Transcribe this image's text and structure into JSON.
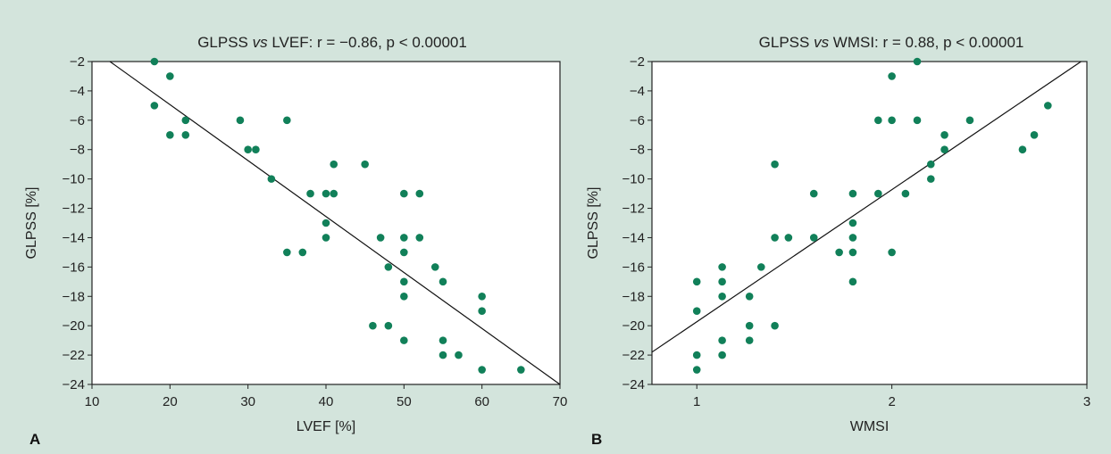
{
  "figure": {
    "background_color": "#d3e4dc",
    "point_color": "#118059"
  },
  "chart_data": [
    {
      "type": "scatter",
      "panel_letter": "A",
      "title_parts": [
        "GLPSS ",
        "vs",
        " LVEF: r = −0.86, p < 0.00001"
      ],
      "xlabel": "LVEF [%]",
      "ylabel": "GLPSS [%]",
      "xlim": [
        10,
        70
      ],
      "ylim": [
        -24,
        -2
      ],
      "xticks": [
        10,
        20,
        30,
        40,
        50,
        60,
        70
      ],
      "xtick_labels": [
        "10",
        "20",
        "30",
        "40",
        "50",
        "60",
        "70"
      ],
      "yticks": [
        -2,
        -4,
        -6,
        -8,
        -10,
        -12,
        -14,
        -16,
        -18,
        -20,
        -22,
        -24
      ],
      "ytick_labels": [
        "−2",
        "−4",
        "−6",
        "−8",
        "−10",
        "−12",
        "−14",
        "−16",
        "−18",
        "−20",
        "−22",
        "−24"
      ],
      "grid": false,
      "regression_line": [
        [
          12.3,
          -2
        ],
        [
          70,
          -24
        ]
      ],
      "points": [
        [
          18,
          -2
        ],
        [
          20,
          -3
        ],
        [
          18,
          -5
        ],
        [
          20,
          -7
        ],
        [
          22,
          -6
        ],
        [
          22,
          -7
        ],
        [
          29,
          -6
        ],
        [
          30,
          -8
        ],
        [
          31,
          -8
        ],
        [
          33,
          -10
        ],
        [
          35,
          -6
        ],
        [
          35,
          -15
        ],
        [
          37,
          -15
        ],
        [
          38,
          -11
        ],
        [
          40,
          -11
        ],
        [
          40,
          -13
        ],
        [
          40,
          -14
        ],
        [
          41,
          -9
        ],
        [
          41,
          -11
        ],
        [
          45,
          -9
        ],
        [
          46,
          -20
        ],
        [
          47,
          -14
        ],
        [
          48,
          -16
        ],
        [
          48,
          -20
        ],
        [
          50,
          -11
        ],
        [
          50,
          -14
        ],
        [
          50,
          -15
        ],
        [
          50,
          -17
        ],
        [
          50,
          -18
        ],
        [
          50,
          -21
        ],
        [
          52,
          -11
        ],
        [
          52,
          -14
        ],
        [
          54,
          -16
        ],
        [
          55,
          -17
        ],
        [
          55,
          -21
        ],
        [
          55,
          -22
        ],
        [
          57,
          -22
        ],
        [
          60,
          -18
        ],
        [
          60,
          -19
        ],
        [
          60,
          -23
        ],
        [
          65,
          -23
        ]
      ]
    },
    {
      "type": "scatter",
      "panel_letter": "B",
      "title_parts": [
        "GLPSS ",
        "vs",
        " WMSI: r = 0.88, p < 0.00001"
      ],
      "xlabel": "WMSI",
      "ylabel": "GLPSS [%]",
      "xlim": [
        0.77,
        3
      ],
      "ylim": [
        -24,
        -2
      ],
      "xticks": [
        1,
        2,
        3
      ],
      "xtick_labels": [
        "1",
        "2",
        "3"
      ],
      "yticks": [
        -2,
        -4,
        -6,
        -8,
        -10,
        -12,
        -14,
        -16,
        -18,
        -20,
        -22,
        -24
      ],
      "ytick_labels": [
        "−2",
        "−4",
        "−6",
        "−8",
        "−10",
        "−12",
        "−14",
        "−16",
        "−18",
        "−20",
        "−22",
        "−24"
      ],
      "grid": false,
      "regression_line": [
        [
          0.77,
          -21.8
        ],
        [
          2.97,
          -2
        ]
      ],
      "points": [
        [
          1,
          -17
        ],
        [
          1,
          -19
        ],
        [
          1,
          -22
        ],
        [
          1,
          -23
        ],
        [
          1.13,
          -16
        ],
        [
          1.13,
          -17
        ],
        [
          1.13,
          -18
        ],
        [
          1.13,
          -21
        ],
        [
          1.13,
          -22
        ],
        [
          1.27,
          -18
        ],
        [
          1.27,
          -20
        ],
        [
          1.27,
          -21
        ],
        [
          1.33,
          -16
        ],
        [
          1.4,
          -9
        ],
        [
          1.4,
          -14
        ],
        [
          1.4,
          -20
        ],
        [
          1.47,
          -14
        ],
        [
          1.6,
          -11
        ],
        [
          1.6,
          -14
        ],
        [
          1.73,
          -15
        ],
        [
          1.8,
          -11
        ],
        [
          1.8,
          -13
        ],
        [
          1.8,
          -14
        ],
        [
          1.8,
          -15
        ],
        [
          1.8,
          -17
        ],
        [
          1.93,
          -6
        ],
        [
          1.93,
          -11
        ],
        [
          2,
          -3
        ],
        [
          2,
          -6
        ],
        [
          2,
          -15
        ],
        [
          2.07,
          -11
        ],
        [
          2.13,
          -2
        ],
        [
          2.13,
          -6
        ],
        [
          2.2,
          -9
        ],
        [
          2.2,
          -10
        ],
        [
          2.27,
          -7
        ],
        [
          2.27,
          -8
        ],
        [
          2.4,
          -6
        ],
        [
          2.67,
          -8
        ],
        [
          2.73,
          -7
        ],
        [
          2.8,
          -5
        ]
      ]
    }
  ]
}
